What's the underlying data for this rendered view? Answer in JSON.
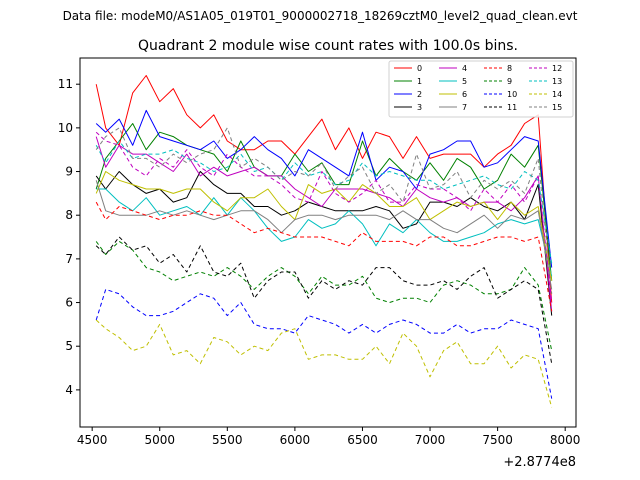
{
  "header": "Data file: modeM0/AS1A05_019T01_9000002718_18269cztM0_level2_quad_clean.evt",
  "chart_data": {
    "type": "line",
    "title": "Quadrant 2 module wise count rates with 100.0s bins.",
    "xlabel": "",
    "ylabel": "",
    "x_offset_label": "+2.8774e8",
    "xlim": [
      4410,
      8080
    ],
    "ylim": [
      3.15,
      11.6
    ],
    "xticks": [
      4500,
      5000,
      5500,
      6000,
      6500,
      7000,
      7500,
      8000
    ],
    "yticks": [
      4,
      5,
      6,
      7,
      8,
      9,
      10,
      11
    ],
    "grid": false,
    "legend_position": "top-right",
    "x": [
      4530,
      4600,
      4700,
      4800,
      4900,
      5000,
      5100,
      5200,
      5300,
      5400,
      5500,
      5600,
      5700,
      5800,
      5900,
      6000,
      6100,
      6200,
      6300,
      6400,
      6500,
      6600,
      6700,
      6800,
      6900,
      7000,
      7100,
      7200,
      7300,
      7400,
      7500,
      7600,
      7700,
      7800,
      7900
    ],
    "series": [
      {
        "name": "0",
        "color": "#ff0000",
        "dash": "solid",
        "values": [
          11.0,
          10.0,
          9.6,
          10.8,
          11.2,
          10.6,
          10.9,
          10.3,
          10.0,
          10.3,
          9.7,
          9.5,
          9.5,
          9.7,
          9.7,
          9.4,
          9.8,
          10.2,
          9.5,
          10.0,
          9.3,
          9.9,
          9.8,
          9.3,
          9.8,
          9.3,
          9.4,
          9.4,
          9.4,
          9.1,
          9.4,
          9.6,
          10.1,
          10.3,
          6.0
        ]
      },
      {
        "name": "1",
        "color": "#008000",
        "dash": "solid",
        "values": [
          8.6,
          9.3,
          9.7,
          10.1,
          9.5,
          9.9,
          9.8,
          9.6,
          9.5,
          9.4,
          9.0,
          9.7,
          9.1,
          8.9,
          8.9,
          9.4,
          9.0,
          9.2,
          8.7,
          8.7,
          9.7,
          8.9,
          9.3,
          9.0,
          8.8,
          9.2,
          8.8,
          9.3,
          9.1,
          8.6,
          8.8,
          9.4,
          9.1,
          9.6,
          6.5
        ]
      },
      {
        "name": "2",
        "color": "#0000ff",
        "dash": "solid",
        "values": [
          10.1,
          9.9,
          10.2,
          9.6,
          10.4,
          9.8,
          9.7,
          9.6,
          9.5,
          9.7,
          9.3,
          9.5,
          9.8,
          9.5,
          9.3,
          8.9,
          9.5,
          9.3,
          9.1,
          8.9,
          9.9,
          8.8,
          9.1,
          9.0,
          8.6,
          9.4,
          9.5,
          9.7,
          9.7,
          9.1,
          9.2,
          9.5,
          9.8,
          9.7,
          6.8
        ]
      },
      {
        "name": "3",
        "color": "#000000",
        "dash": "solid",
        "values": [
          8.9,
          8.6,
          9.0,
          8.7,
          8.5,
          8.6,
          8.3,
          8.4,
          9.0,
          8.7,
          8.5,
          8.5,
          8.2,
          8.2,
          8.0,
          8.1,
          8.3,
          8.2,
          8.1,
          8.1,
          8.1,
          8.2,
          8.1,
          7.7,
          7.8,
          8.3,
          8.3,
          8.2,
          8.4,
          8.2,
          8.1,
          8.3,
          7.9,
          8.7,
          5.7
        ]
      },
      {
        "name": "4",
        "color": "#bf00bf",
        "dash": "solid",
        "values": [
          9.8,
          9.1,
          9.6,
          9.4,
          9.4,
          9.2,
          9.0,
          9.4,
          8.9,
          9.1,
          8.9,
          9.0,
          9.1,
          8.9,
          8.9,
          8.6,
          8.4,
          8.2,
          8.6,
          8.6,
          8.6,
          8.5,
          8.4,
          8.2,
          8.6,
          8.4,
          8.3,
          8.4,
          8.2,
          8.3,
          8.3,
          8.1,
          8.4,
          8.9,
          5.8
        ]
      },
      {
        "name": "5",
        "color": "#00bfbf",
        "dash": "solid",
        "values": [
          8.6,
          8.6,
          8.3,
          8.1,
          8.4,
          8.0,
          8.1,
          8.2,
          8.0,
          8.4,
          8.0,
          8.4,
          8.1,
          7.7,
          7.4,
          7.5,
          7.9,
          7.7,
          7.8,
          8.1,
          7.8,
          7.3,
          7.8,
          7.6,
          7.9,
          7.6,
          7.4,
          7.4,
          7.5,
          7.6,
          7.8,
          7.9,
          7.8,
          7.9,
          6.6
        ]
      },
      {
        "name": "6",
        "color": "#bfbf00",
        "dash": "solid",
        "values": [
          8.5,
          9.0,
          8.8,
          8.7,
          8.6,
          8.6,
          8.5,
          8.6,
          8.6,
          8.3,
          8.1,
          8.4,
          8.4,
          8.6,
          8.2,
          7.9,
          8.7,
          8.5,
          8.6,
          8.3,
          8.7,
          8.5,
          8.2,
          8.2,
          8.4,
          7.9,
          8.1,
          8.3,
          8.2,
          8.3,
          7.9,
          8.3,
          8.0,
          8.2,
          6.5
        ]
      },
      {
        "name": "7",
        "color": "#808080",
        "dash": "solid",
        "values": [
          8.8,
          8.1,
          8.0,
          8.0,
          8.0,
          8.1,
          8.0,
          8.1,
          8.0,
          7.9,
          8.0,
          8.1,
          8.1,
          7.9,
          7.6,
          7.9,
          8.0,
          8.0,
          7.9,
          8.0,
          8.0,
          8.0,
          7.9,
          8.1,
          7.9,
          7.9,
          7.7,
          7.6,
          7.8,
          8.0,
          7.7,
          8.0,
          7.9,
          8.1,
          6.3
        ]
      },
      {
        "name": "8",
        "color": "#ff0000",
        "dash": "dashed",
        "values": [
          8.3,
          7.9,
          8.2,
          8.1,
          8.0,
          7.9,
          8.0,
          8.0,
          8.1,
          8.0,
          8.0,
          7.8,
          7.6,
          7.7,
          7.6,
          7.5,
          7.5,
          7.5,
          7.4,
          7.3,
          7.6,
          7.4,
          7.4,
          7.4,
          7.3,
          7.5,
          7.5,
          7.3,
          7.3,
          7.4,
          7.5,
          7.5,
          7.4,
          7.5,
          5.8
        ]
      },
      {
        "name": "9",
        "color": "#008000",
        "dash": "dashed",
        "values": [
          7.4,
          7.1,
          7.4,
          7.2,
          6.8,
          6.7,
          6.5,
          6.6,
          6.7,
          6.6,
          6.8,
          6.6,
          6.3,
          6.6,
          6.8,
          6.6,
          6.2,
          6.6,
          6.4,
          6.4,
          6.6,
          6.1,
          6.0,
          6.1,
          6.1,
          6.0,
          6.4,
          6.5,
          6.4,
          6.2,
          6.2,
          6.3,
          6.8,
          6.4,
          4.9
        ]
      },
      {
        "name": "10",
        "color": "#0000ff",
        "dash": "dashed",
        "values": [
          5.6,
          6.3,
          6.2,
          5.9,
          5.7,
          5.7,
          5.8,
          6.0,
          6.2,
          6.1,
          5.7,
          6.0,
          5.5,
          5.4,
          5.4,
          5.3,
          5.7,
          5.6,
          5.5,
          5.3,
          5.5,
          5.3,
          5.5,
          5.6,
          5.5,
          5.3,
          5.3,
          5.5,
          5.3,
          5.4,
          5.4,
          5.6,
          5.5,
          5.4,
          3.8
        ]
      },
      {
        "name": "11",
        "color": "#000000",
        "dash": "dashed",
        "values": [
          7.3,
          7.1,
          7.5,
          7.2,
          7.3,
          6.9,
          7.1,
          6.7,
          7.3,
          6.7,
          6.6,
          6.9,
          6.1,
          6.5,
          6.7,
          6.7,
          6.1,
          6.5,
          6.3,
          6.5,
          6.4,
          6.8,
          6.8,
          6.5,
          6.4,
          6.4,
          6.5,
          6.3,
          6.6,
          6.8,
          6.1,
          6.3,
          6.5,
          6.3,
          4.6
        ]
      },
      {
        "name": "12",
        "color": "#bf00bf",
        "dash": "dashed",
        "values": [
          9.9,
          9.7,
          9.6,
          9.1,
          8.9,
          9.3,
          9.1,
          9.5,
          9.1,
          8.9,
          9.4,
          9.1,
          8.9,
          8.9,
          8.7,
          8.4,
          8.3,
          9.0,
          8.5,
          8.3,
          8.5,
          8.8,
          8.3,
          8.3,
          8.7,
          8.6,
          8.6,
          8.4,
          8.1,
          8.6,
          8.3,
          8.7,
          8.3,
          8.9,
          6.0
        ]
      },
      {
        "name": "13",
        "color": "#00bfbf",
        "dash": "dashed",
        "values": [
          9.6,
          9.2,
          9.7,
          9.3,
          9.4,
          9.4,
          9.5,
          9.3,
          9.2,
          9.0,
          9.1,
          9.4,
          9.0,
          9.1,
          8.8,
          9.2,
          8.9,
          9.0,
          8.7,
          8.8,
          9.2,
          8.9,
          9.0,
          8.9,
          8.8,
          8.8,
          8.6,
          8.7,
          8.8,
          8.9,
          8.7,
          8.6,
          9.0,
          8.8,
          6.9
        ]
      },
      {
        "name": "14",
        "color": "#bfbf00",
        "dash": "dashed",
        "values": [
          5.6,
          5.4,
          5.2,
          4.9,
          5.0,
          5.5,
          4.8,
          4.9,
          4.6,
          5.2,
          5.1,
          4.8,
          5.0,
          4.9,
          5.3,
          5.4,
          4.7,
          4.8,
          4.8,
          4.7,
          4.7,
          5.0,
          4.6,
          5.3,
          5.0,
          4.3,
          4.9,
          5.1,
          4.6,
          4.6,
          5.0,
          4.5,
          4.8,
          4.7,
          3.6
        ]
      },
      {
        "name": "15",
        "color": "#808080",
        "dash": "dashed",
        "values": [
          9.5,
          9.8,
          10.0,
          9.3,
          9.3,
          9.1,
          9.4,
          9.2,
          9.4,
          9.5,
          10.0,
          9.1,
          9.3,
          9.1,
          8.8,
          9.0,
          8.9,
          9.2,
          8.6,
          8.9,
          9.1,
          8.5,
          8.7,
          8.3,
          9.4,
          8.6,
          8.7,
          9.0,
          8.4,
          8.8,
          8.6,
          8.8,
          8.5,
          9.3,
          6.2
        ]
      }
    ]
  }
}
